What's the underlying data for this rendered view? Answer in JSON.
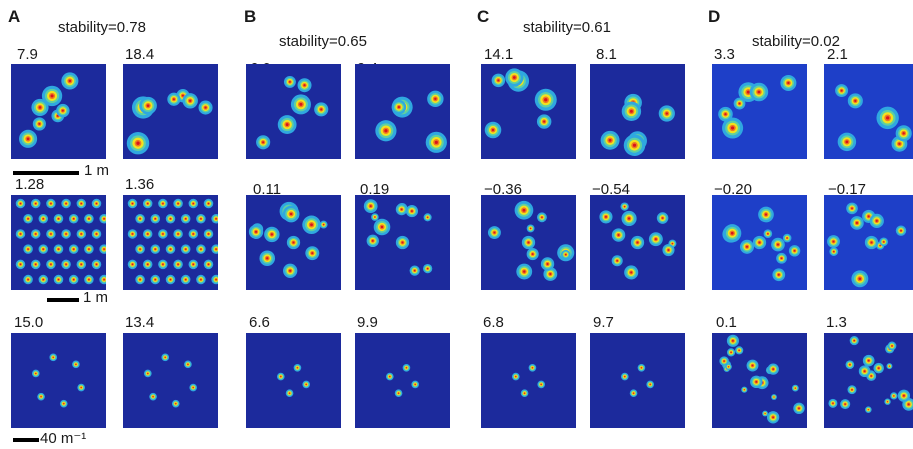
{
  "panels": [
    {
      "letter": "A",
      "stability": "stability=0.78",
      "rows": [
        [
          "7.9",
          "18.4"
        ],
        [
          "1.28",
          "1.36"
        ],
        [
          "15.0",
          "13.4"
        ]
      ]
    },
    {
      "letter": "B",
      "stability": "stability=0.65",
      "rows": [
        [
          "6.0",
          "9.4"
        ],
        [
          "0.11",
          "0.19"
        ],
        [
          "6.6",
          "9.9"
        ]
      ]
    },
    {
      "letter": "C",
      "stability": "stability=0.61",
      "rows": [
        [
          "14.1",
          "8.1"
        ],
        [
          "−0.36",
          "−0.54"
        ],
        [
          "6.8",
          "9.7"
        ]
      ]
    },
    {
      "letter": "D",
      "stability": "stability=0.02",
      "rows": [
        [
          "3.3",
          "2.1"
        ],
        [
          "−0.20",
          "−0.17"
        ],
        [
          "0.1",
          "1.3"
        ]
      ]
    }
  ],
  "scalebars": {
    "row1": "1 m",
    "row2": "1 m",
    "row3": "40 m⁻¹"
  },
  "colors": {
    "background": "#1c2a9c",
    "low": "#1e3fc8",
    "mid": "#2fa8e0",
    "high": "#f2e21e",
    "peak": "#d8141c"
  }
}
